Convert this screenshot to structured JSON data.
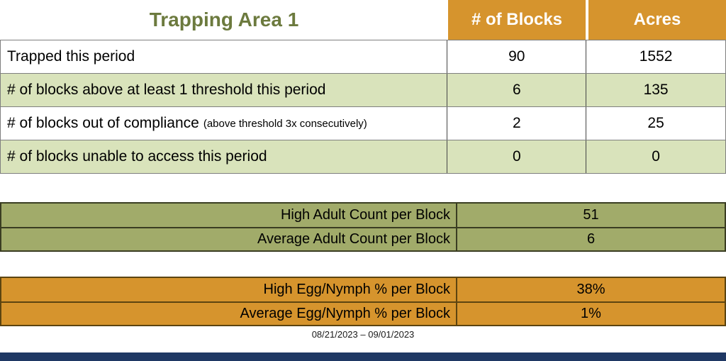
{
  "title": "Trapping Area 1",
  "date_range": "08/21/2023 – 09/01/2023",
  "colors": {
    "accent_orange": "#D6942D",
    "light_green_row": "#D9E3BB",
    "olive_section": "#A1AB6A",
    "title_green": "#6C7A3E",
    "header_text": "#FFFFFF",
    "footer_navy": "#1F3864"
  },
  "main_table": {
    "columns": [
      "# of Blocks",
      "Acres"
    ],
    "rows": [
      {
        "label": "Trapped this period",
        "blocks": "90",
        "acres": "1552"
      },
      {
        "label": "# of blocks above at least 1 threshold this period",
        "blocks": "6",
        "acres": "135"
      },
      {
        "label": "# of blocks out of compliance",
        "note": "(above threshold 3x consecutively)",
        "blocks": "2",
        "acres": "25"
      },
      {
        "label": "# of blocks unable to access this period",
        "blocks": "0",
        "acres": "0"
      }
    ]
  },
  "adult_table": {
    "rows": [
      {
        "label": "High Adult Count per Block",
        "value": "51"
      },
      {
        "label": "Average Adult Count per Block",
        "value": "6"
      }
    ]
  },
  "egg_table": {
    "rows": [
      {
        "label": "High Egg/Nymph % per Block",
        "value": "38%"
      },
      {
        "label": "Average Egg/Nymph % per Block",
        "value": "1%"
      }
    ]
  }
}
